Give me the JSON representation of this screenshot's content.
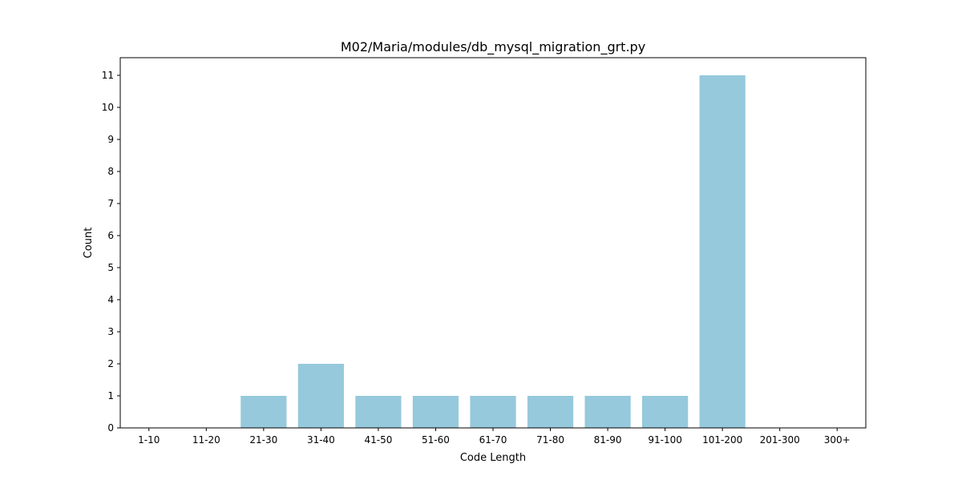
{
  "chart_data": {
    "type": "bar",
    "title": "M02/Maria/modules/db_mysql_migration_grt.py",
    "xlabel": "Code Length",
    "ylabel": "Count",
    "categories": [
      "1-10",
      "11-20",
      "21-30",
      "31-40",
      "41-50",
      "51-60",
      "61-70",
      "71-80",
      "81-90",
      "91-100",
      "101-200",
      "201-300",
      "300+"
    ],
    "values": [
      0,
      0,
      1,
      2,
      1,
      1,
      1,
      1,
      1,
      1,
      11,
      0,
      0
    ],
    "ylim": [
      0,
      11.55
    ],
    "yticks": [
      0,
      1,
      2,
      3,
      4,
      5,
      6,
      7,
      8,
      9,
      10,
      11
    ],
    "bar_color": "#96c9dc",
    "grid": false,
    "legend": false
  }
}
